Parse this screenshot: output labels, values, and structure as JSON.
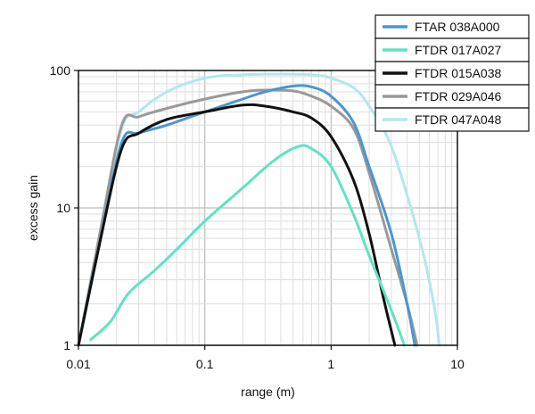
{
  "chart_data": {
    "type": "line",
    "title": "",
    "xlabel": "range (m)",
    "ylabel": "excess gain",
    "x_scale": "log",
    "y_scale": "log",
    "xlim": [
      0.01,
      10
    ],
    "ylim": [
      1,
      100
    ],
    "grid": true,
    "legend_position": "top-right",
    "x_ticks": [
      {
        "value": 0.01,
        "label": "0.01"
      },
      {
        "value": 0.1,
        "label": "0.1"
      },
      {
        "value": 1,
        "label": "1"
      },
      {
        "value": 10,
        "label": "10"
      }
    ],
    "y_ticks": [
      {
        "value": 1,
        "label": "1"
      },
      {
        "value": 10,
        "label": "10"
      },
      {
        "value": 100,
        "label": "100"
      }
    ],
    "series": [
      {
        "name": "FTAR 038A000",
        "color": "#4a97d4",
        "points": [
          [
            0.01,
            1.0
          ],
          [
            0.015,
            6.0
          ],
          [
            0.022,
            30
          ],
          [
            0.03,
            35
          ],
          [
            0.05,
            40
          ],
          [
            0.1,
            50
          ],
          [
            0.2,
            62
          ],
          [
            0.3,
            70
          ],
          [
            0.5,
            77
          ],
          [
            0.7,
            76
          ],
          [
            1.0,
            65
          ],
          [
            1.5,
            42
          ],
          [
            2.0,
            20
          ],
          [
            3.0,
            6.5
          ],
          [
            4.0,
            2.0
          ],
          [
            4.6,
            1.0
          ]
        ]
      },
      {
        "name": "FTDR 017A027",
        "color": "#5fe3c2",
        "points": [
          [
            0.0125,
            1.1
          ],
          [
            0.018,
            1.5
          ],
          [
            0.025,
            2.4
          ],
          [
            0.04,
            3.5
          ],
          [
            0.06,
            5.0
          ],
          [
            0.1,
            8.0
          ],
          [
            0.2,
            14
          ],
          [
            0.35,
            22
          ],
          [
            0.55,
            28
          ],
          [
            0.7,
            27
          ],
          [
            1.0,
            20
          ],
          [
            1.5,
            9.0
          ],
          [
            2.0,
            4.5
          ],
          [
            3.0,
            1.8
          ],
          [
            3.8,
            1.0
          ]
        ]
      },
      {
        "name": "FTDR 015A038",
        "color": "#111111",
        "points": [
          [
            0.01,
            1.0
          ],
          [
            0.015,
            6.0
          ],
          [
            0.022,
            27
          ],
          [
            0.03,
            35
          ],
          [
            0.05,
            44
          ],
          [
            0.1,
            50
          ],
          [
            0.2,
            56
          ],
          [
            0.3,
            55
          ],
          [
            0.5,
            50
          ],
          [
            0.7,
            45
          ],
          [
            1.0,
            33
          ],
          [
            1.5,
            16
          ],
          [
            2.0,
            6.5
          ],
          [
            2.6,
            2.2
          ],
          [
            3.2,
            1.0
          ]
        ]
      },
      {
        "name": "FTDR 029A046",
        "color": "#999999",
        "points": [
          [
            0.01,
            1.0
          ],
          [
            0.015,
            7.0
          ],
          [
            0.022,
            40
          ],
          [
            0.03,
            46
          ],
          [
            0.05,
            53
          ],
          [
            0.1,
            62
          ],
          [
            0.2,
            70
          ],
          [
            0.3,
            72
          ],
          [
            0.5,
            71
          ],
          [
            0.7,
            65
          ],
          [
            1.0,
            55
          ],
          [
            1.5,
            38
          ],
          [
            2.0,
            18
          ],
          [
            3.0,
            5.0
          ],
          [
            4.0,
            2.0
          ],
          [
            4.8,
            1.0
          ]
        ]
      },
      {
        "name": "FTDR 047A048",
        "color": "#b0e8ec",
        "points": [
          [
            0.01,
            1.0
          ],
          [
            0.015,
            7.0
          ],
          [
            0.022,
            38
          ],
          [
            0.03,
            50
          ],
          [
            0.05,
            70
          ],
          [
            0.1,
            88
          ],
          [
            0.2,
            93
          ],
          [
            0.5,
            94
          ],
          [
            0.8,
            92
          ],
          [
            1.0,
            88
          ],
          [
            1.5,
            75
          ],
          [
            2.0,
            55
          ],
          [
            3.0,
            28
          ],
          [
            5.0,
            6.0
          ],
          [
            6.5,
            2.0
          ],
          [
            7.2,
            1.0
          ]
        ]
      }
    ]
  }
}
